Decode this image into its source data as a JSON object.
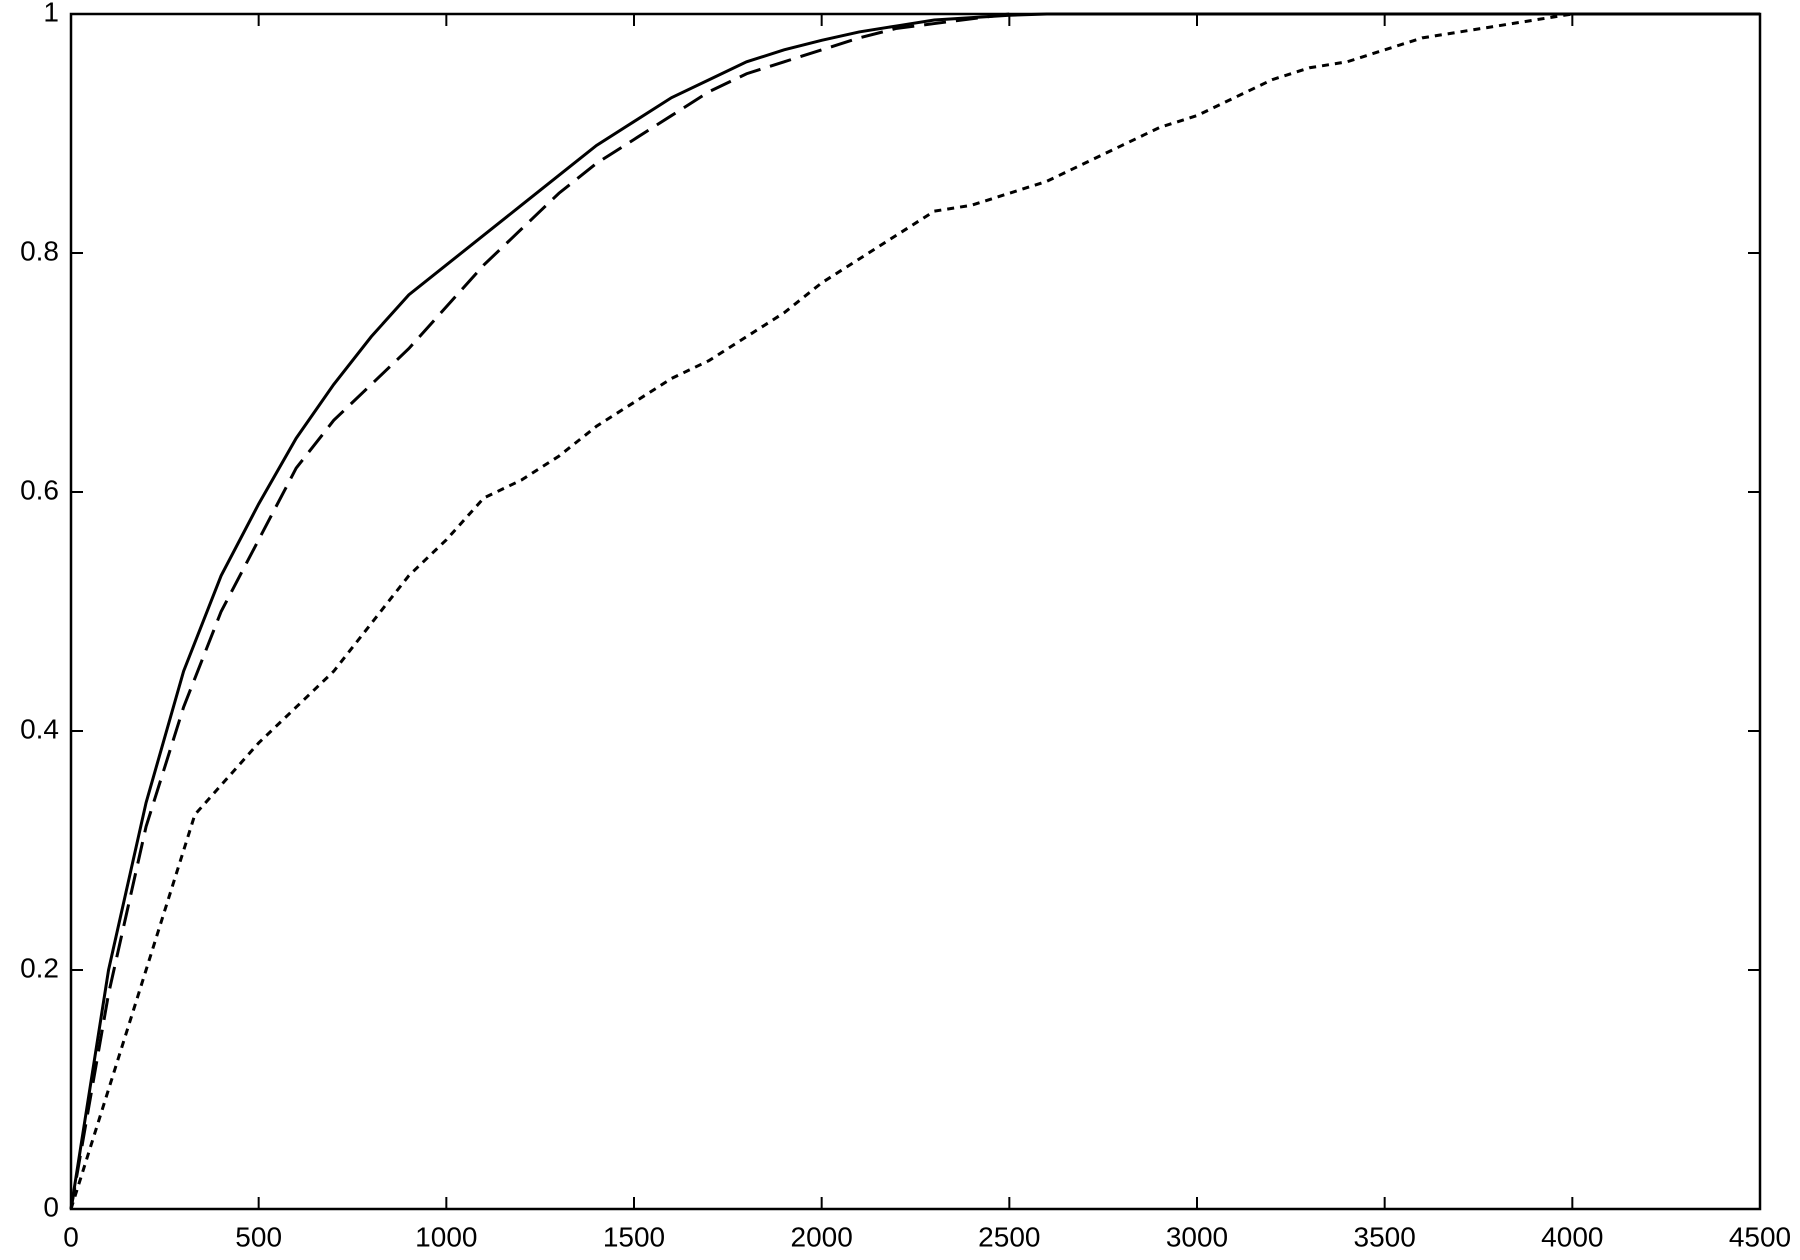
{
  "chart_data": {
    "type": "line",
    "xlim": [
      0,
      4500
    ],
    "xticks": [
      0,
      500,
      1000,
      1500,
      2000,
      2500,
      3000,
      3500,
      4000,
      4500
    ],
    "ylim": [
      0,
      1
    ],
    "yticks": [
      0,
      0.2,
      0.4,
      0.6,
      0.8,
      1
    ],
    "grid": false,
    "series": [
      {
        "color": "#000000",
        "style": "solid",
        "x": [
          0,
          100,
          200,
          300,
          400,
          500,
          600,
          700,
          800,
          900,
          1000,
          1100,
          1200,
          1300,
          1400,
          1500,
          1600,
          1700,
          1800,
          1900,
          2000,
          2100,
          2200,
          2300,
          2400,
          2500,
          2600,
          2700,
          4500
        ],
        "values": [
          0,
          0.2,
          0.34,
          0.45,
          0.53,
          0.59,
          0.645,
          0.69,
          0.73,
          0.765,
          0.79,
          0.815,
          0.84,
          0.865,
          0.89,
          0.91,
          0.93,
          0.945,
          0.96,
          0.97,
          0.978,
          0.985,
          0.99,
          0.995,
          0.997,
          0.999,
          1,
          1,
          1
        ]
      },
      {
        "color": "#000000",
        "style": "dashed",
        "x": [
          0,
          100,
          200,
          300,
          400,
          500,
          600,
          700,
          800,
          900,
          1000,
          1100,
          1200,
          1300,
          1400,
          1500,
          1600,
          1700,
          1800,
          1900,
          2000,
          2100,
          2200,
          2300,
          2400,
          2500
        ],
        "values": [
          0,
          0.18,
          0.32,
          0.42,
          0.5,
          0.56,
          0.62,
          0.66,
          0.69,
          0.72,
          0.755,
          0.79,
          0.82,
          0.85,
          0.875,
          0.895,
          0.915,
          0.935,
          0.95,
          0.96,
          0.97,
          0.98,
          0.988,
          0.992,
          0.996,
          1
        ]
      },
      {
        "color": "#000000",
        "style": "dotted",
        "x": [
          0,
          100,
          200,
          300,
          330,
          500,
          600,
          700,
          800,
          900,
          1000,
          1100,
          1200,
          1300,
          1400,
          1500,
          1600,
          1700,
          1800,
          1900,
          2000,
          2100,
          2200,
          2300,
          2400,
          2500,
          2600,
          2700,
          2800,
          2900,
          3000,
          3100,
          3200,
          3300,
          3400,
          3500,
          3600,
          3700,
          3800,
          3900,
          4000
        ],
        "values": [
          0,
          0.1,
          0.2,
          0.3,
          0.33,
          0.39,
          0.42,
          0.45,
          0.49,
          0.53,
          0.56,
          0.595,
          0.61,
          0.63,
          0.655,
          0.675,
          0.695,
          0.71,
          0.73,
          0.75,
          0.775,
          0.795,
          0.815,
          0.835,
          0.84,
          0.85,
          0.86,
          0.875,
          0.89,
          0.905,
          0.915,
          0.93,
          0.945,
          0.955,
          0.96,
          0.97,
          0.98,
          0.985,
          0.99,
          0.995,
          1
        ]
      }
    ]
  }
}
